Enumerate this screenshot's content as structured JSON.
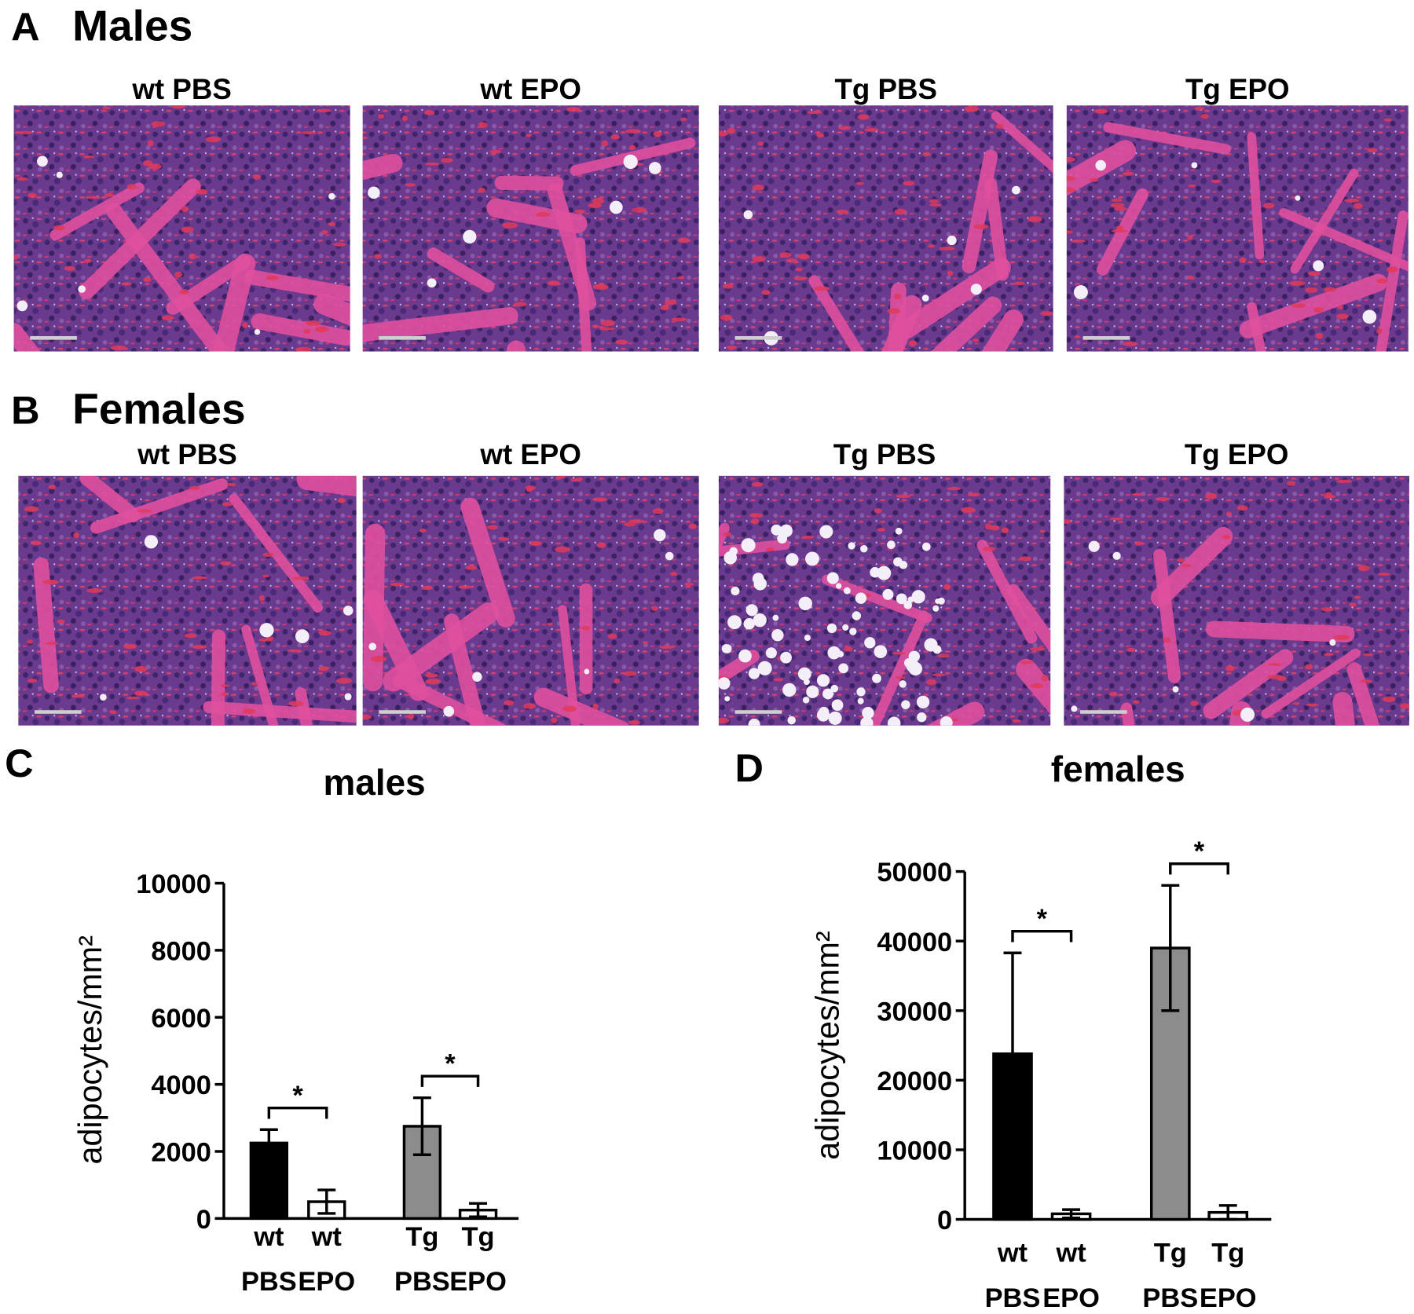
{
  "panels": [
    {
      "letter": "A",
      "title": "Males",
      "images": [
        "wt PBS",
        "wt EPO",
        "Tg PBS",
        "Tg EPO"
      ]
    },
    {
      "letter": "B",
      "title": "Females",
      "images": [
        "wt PBS",
        "wt EPO",
        "Tg PBS",
        "Tg EPO"
      ]
    }
  ],
  "chart_data": [
    {
      "type": "bar",
      "letter": "C",
      "title": "males",
      "y_label": "adipocytes/mm²",
      "categories": [
        "wt PBS",
        "wt EPO",
        "Tg PBS",
        "Tg EPO"
      ],
      "values": [
        2250,
        500,
        2750,
        250
      ],
      "errors": [
        400,
        350,
        850,
        200
      ],
      "colors": [
        "#000000",
        "#ffffff",
        "#8c8c8c",
        "#ffffff"
      ],
      "ylim": [
        0,
        10000
      ],
      "yticks": [
        0,
        2000,
        4000,
        6000,
        8000,
        10000
      ],
      "annotations": [
        "*",
        "*"
      ]
    },
    {
      "type": "bar",
      "letter": "D",
      "title": "females",
      "y_label": "adipocytes/mm²",
      "categories": [
        "wt PBS",
        "wt EPO",
        "Tg PBS",
        "Tg EPO"
      ],
      "values": [
        23800,
        800,
        39000,
        1000
      ],
      "errors": [
        14500,
        600,
        9000,
        1000
      ],
      "colors": [
        "#000000",
        "#ffffff",
        "#8c8c8c",
        "#ffffff"
      ],
      "ylim": [
        0,
        50000
      ],
      "yticks": [
        0,
        10000,
        20000,
        30000,
        40000,
        50000
      ],
      "annotations": [
        "*",
        "*"
      ]
    }
  ]
}
